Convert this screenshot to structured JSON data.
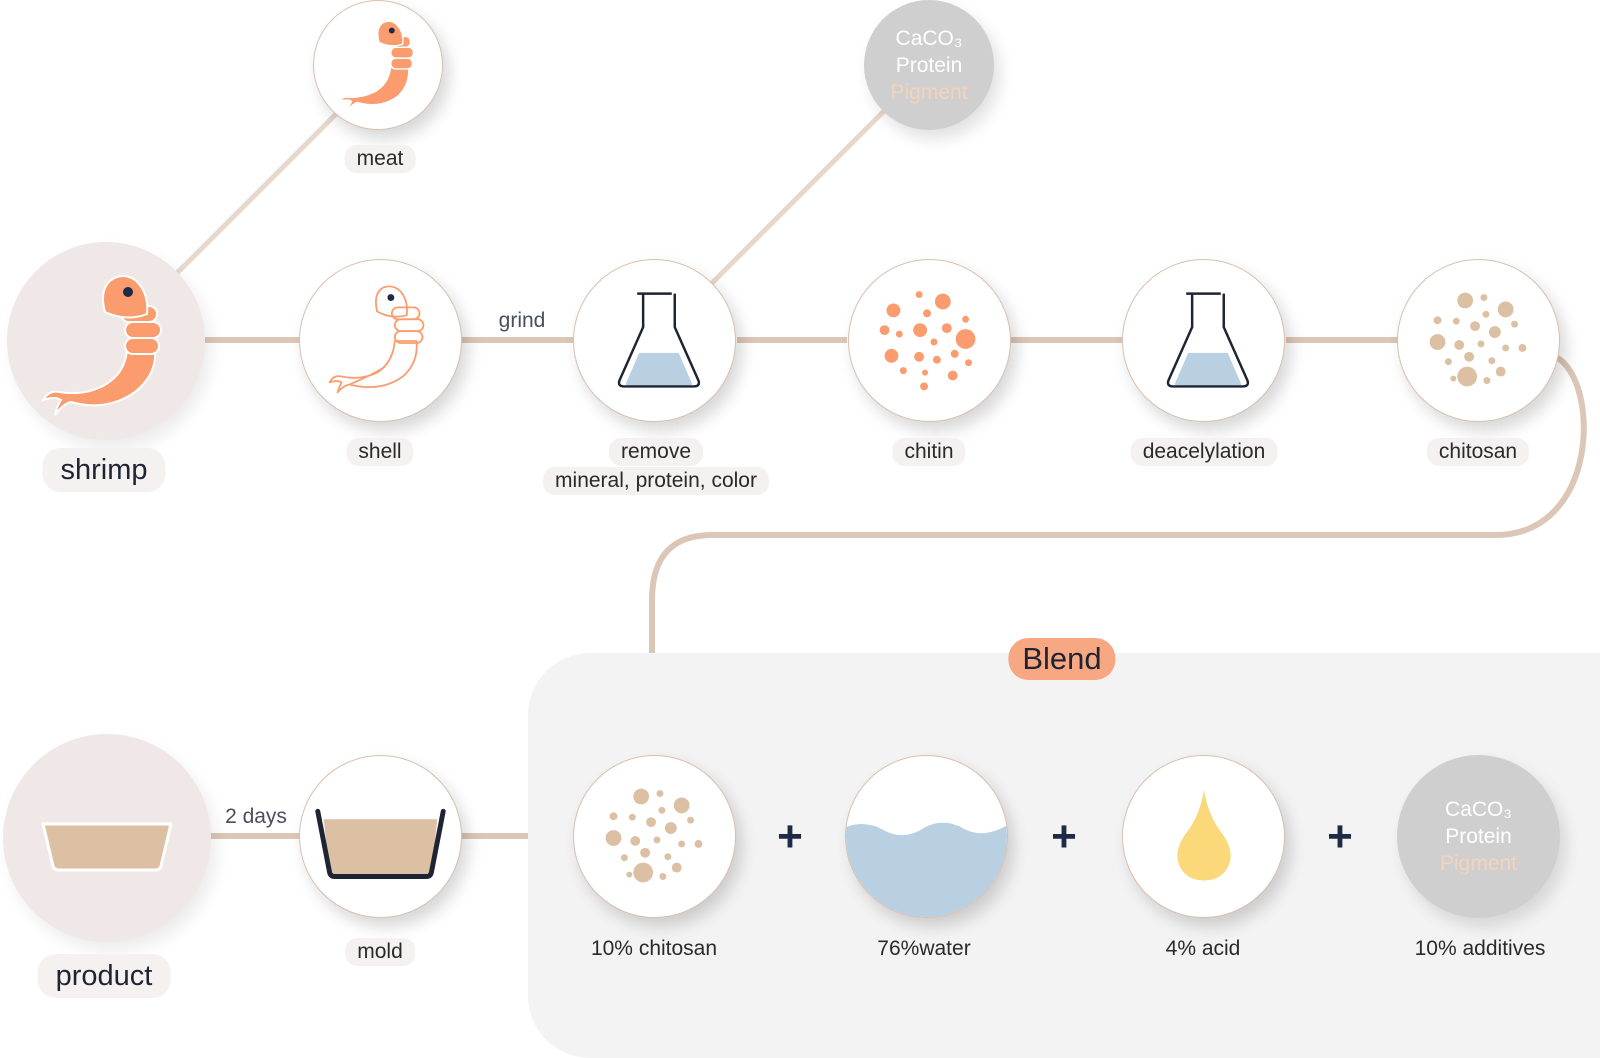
{
  "nodes": {
    "shrimp": "shrimp",
    "meat": "meat",
    "shell": "shell",
    "remove_line1": "remove",
    "remove_line2": "mineral, protein, color",
    "chitin": "chitin",
    "deacetylation": "deacelylation",
    "chitosan": "chitosan",
    "mold": "mold",
    "product": "product"
  },
  "edges": {
    "grind": "grind",
    "two_days": "2 days"
  },
  "byproduct": {
    "line1": "CaCO₃",
    "line2": "Protein",
    "line3": "Pigment"
  },
  "blend": {
    "title": "Blend",
    "plus": "+",
    "ingredients": [
      "10% chitosan",
      "76%water",
      "4% acid",
      "10% additives"
    ],
    "additives": [
      "CaCO₃",
      "Protein",
      "Pigment"
    ]
  },
  "colors": {
    "line": "#dcc6b6",
    "accent_orange": "#fa9c6e",
    "tan": "#dcc0a3",
    "water": "#b8d0e2",
    "acid": "#fbd97a",
    "navy": "#1f2a44",
    "blend_badge": "#f7a883"
  }
}
